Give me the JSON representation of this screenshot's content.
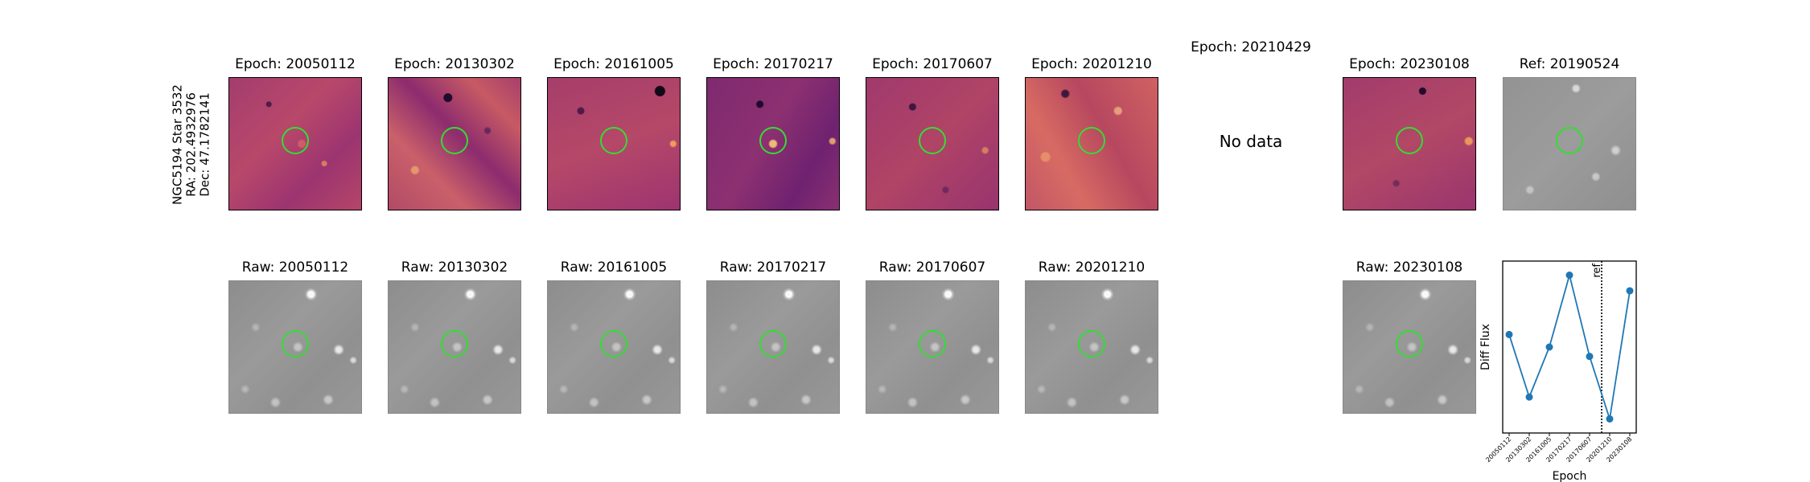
{
  "target": "NGC5194 Star 3532",
  "ra_label": "RA: 202.4932976",
  "dec_label": "Dec: 47.1782141",
  "diff_panels": [
    {
      "title": "Epoch: 20050112",
      "has_data": true
    },
    {
      "title": "Epoch: 20130302",
      "has_data": true
    },
    {
      "title": "Epoch: 20161005",
      "has_data": true
    },
    {
      "title": "Epoch: 20170217",
      "has_data": true
    },
    {
      "title": "Epoch: 20170607",
      "has_data": true
    },
    {
      "title": "Epoch: 20201210",
      "has_data": true
    },
    {
      "title": "Epoch: 20210429",
      "has_data": false,
      "message": "No data"
    },
    {
      "title": "Epoch: 20230108",
      "has_data": true
    }
  ],
  "ref_panel": {
    "title": "Ref: 20190524"
  },
  "raw_panels": [
    {
      "title": "Raw: 20050112"
    },
    {
      "title": "Raw: 20130302"
    },
    {
      "title": "Raw: 20161005"
    },
    {
      "title": "Raw: 20170217"
    },
    {
      "title": "Raw: 20170607"
    },
    {
      "title": "Raw: 20201210"
    },
    {
      "title": "Raw: 20230108"
    }
  ],
  "colors": {
    "circle": "#33dd33",
    "line": "#1f77b4"
  },
  "chart_data": {
    "type": "line",
    "xlabel": "Epoch",
    "ylabel": "Diff Flux",
    "categories": [
      "20050112",
      "20130302",
      "20161005",
      "20170217",
      "20170607",
      "20201210",
      "20230108"
    ],
    "values": [
      0.58,
      0.18,
      0.5,
      0.96,
      0.44,
      0.04,
      0.86
    ],
    "ylim": [
      -0.05,
      1.05
    ],
    "ref_line": {
      "after_index": 4,
      "fraction": 0.6,
      "label": "ref"
    },
    "yticks": "none"
  }
}
